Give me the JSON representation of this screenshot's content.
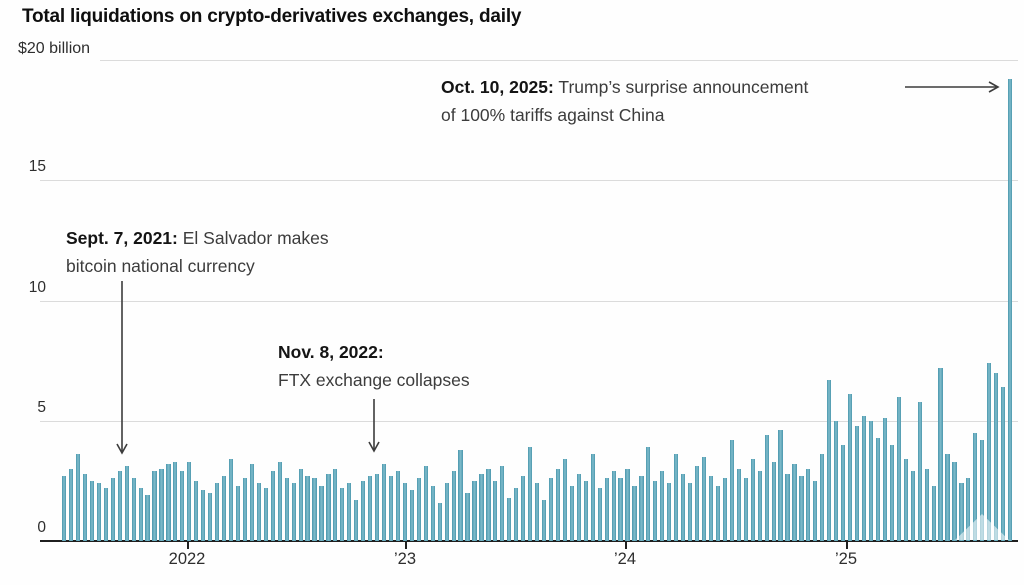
{
  "title": "Total liquidations on crypto-derivatives exchanges, daily",
  "colors": {
    "bar": "#4F9FB4",
    "bar_edge": "#4A97AD",
    "bar_center": "#7FBCCB",
    "grid": "#DBDBDB",
    "axis": "#1F1F1F",
    "tick_text": "#2E2E2E",
    "title_text": "#0F0F0F",
    "annotation_text": "#3C3C3C",
    "annotation_bold": "#141414",
    "arrow": "#3C3C3C"
  },
  "chart_data": {
    "type": "bar",
    "title": "Total liquidations on crypto-derivatives exchanges, daily",
    "ylim": [
      0,
      20
    ],
    "grid": true,
    "y_axis": {
      "ticks": [
        {
          "value": 20,
          "label": "$20 billion"
        },
        {
          "value": 15,
          "label": "15"
        },
        {
          "value": 10,
          "label": "10"
        },
        {
          "value": 5,
          "label": "5"
        },
        {
          "value": 0,
          "label": "0"
        }
      ]
    },
    "x_axis": {
      "ticks": [
        {
          "label": "2022"
        },
        {
          "label": "’23"
        },
        {
          "label": "’24"
        },
        {
          "label": "’25"
        }
      ]
    },
    "values": [
      2.7,
      3.0,
      3.6,
      2.8,
      2.5,
      2.4,
      2.2,
      2.6,
      2.9,
      3.1,
      2.6,
      2.2,
      1.9,
      2.9,
      3.0,
      3.2,
      3.3,
      2.9,
      3.3,
      2.5,
      2.1,
      2.0,
      2.4,
      2.7,
      3.4,
      2.3,
      2.6,
      3.2,
      2.4,
      2.2,
      2.9,
      3.3,
      2.6,
      2.4,
      3.0,
      2.7,
      2.6,
      2.3,
      2.8,
      3.0,
      2.2,
      2.4,
      1.7,
      2.5,
      2.7,
      2.8,
      3.2,
      2.7,
      2.9,
      2.4,
      2.1,
      2.6,
      3.1,
      2.3,
      1.6,
      2.4,
      2.9,
      3.8,
      2.0,
      2.5,
      2.8,
      3.0,
      2.5,
      3.1,
      1.8,
      2.2,
      2.7,
      3.9,
      2.4,
      1.7,
      2.6,
      3.0,
      3.4,
      2.3,
      2.8,
      2.5,
      3.6,
      2.2,
      2.6,
      2.9,
      2.6,
      3.0,
      2.3,
      2.7,
      3.9,
      2.5,
      2.9,
      2.4,
      3.6,
      2.8,
      2.4,
      3.1,
      3.5,
      2.7,
      2.3,
      2.6,
      4.2,
      3.0,
      2.6,
      3.4,
      2.9,
      4.4,
      3.3,
      4.6,
      2.8,
      3.2,
      2.7,
      3.0,
      2.5,
      3.6,
      6.7,
      5.0,
      4.0,
      6.1,
      4.8,
      5.2,
      5.0,
      4.3,
      5.1,
      4.0,
      6.0,
      3.4,
      2.9,
      5.8,
      3.0,
      2.3,
      7.2,
      3.6,
      3.3,
      2.4,
      2.6,
      4.5,
      4.2,
      7.4,
      7.0,
      6.4,
      19.2
    ],
    "annotations": [
      {
        "bold": "Sept. 7, 2021:",
        "rest": " El Salvador makes",
        "line2": "bitcoin national currency"
      },
      {
        "bold": "Nov. 8, 2022:",
        "rest": "",
        "line2": "FTX exchange collapses"
      },
      {
        "bold": "Oct. 10, 2025:",
        "rest": " Trump’s surprise announcement",
        "line2": "of 100% tariffs against China",
        "value": 19.2
      }
    ]
  }
}
